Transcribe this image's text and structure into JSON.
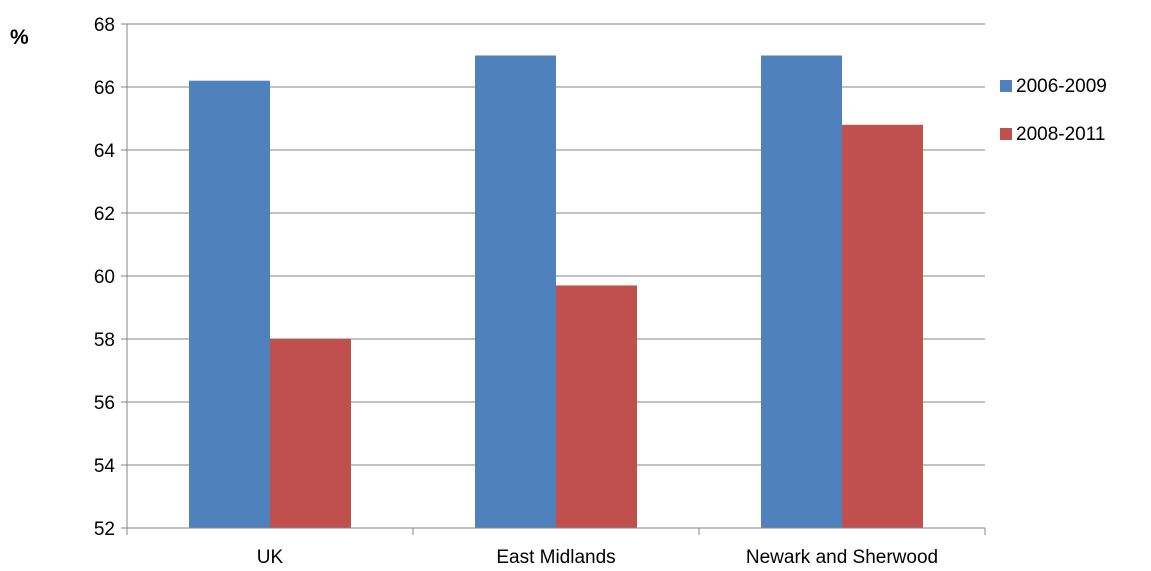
{
  "chart_data": {
    "type": "bar",
    "ylabel": "%",
    "xlabel": "",
    "ylim": [
      52,
      68
    ],
    "yticks": [
      52,
      54,
      56,
      58,
      60,
      62,
      64,
      66,
      68
    ],
    "grid": true,
    "legend_position": "right",
    "categories": [
      "UK",
      "East Midlands",
      "Newark and Sherwood"
    ],
    "series": [
      {
        "name": "2006-2009",
        "color": "#4F81BD",
        "values": [
          66.2,
          67.0,
          67.0
        ]
      },
      {
        "name": "2008-2011",
        "color": "#C0504D",
        "values": [
          58.0,
          59.7,
          64.8
        ]
      }
    ]
  }
}
